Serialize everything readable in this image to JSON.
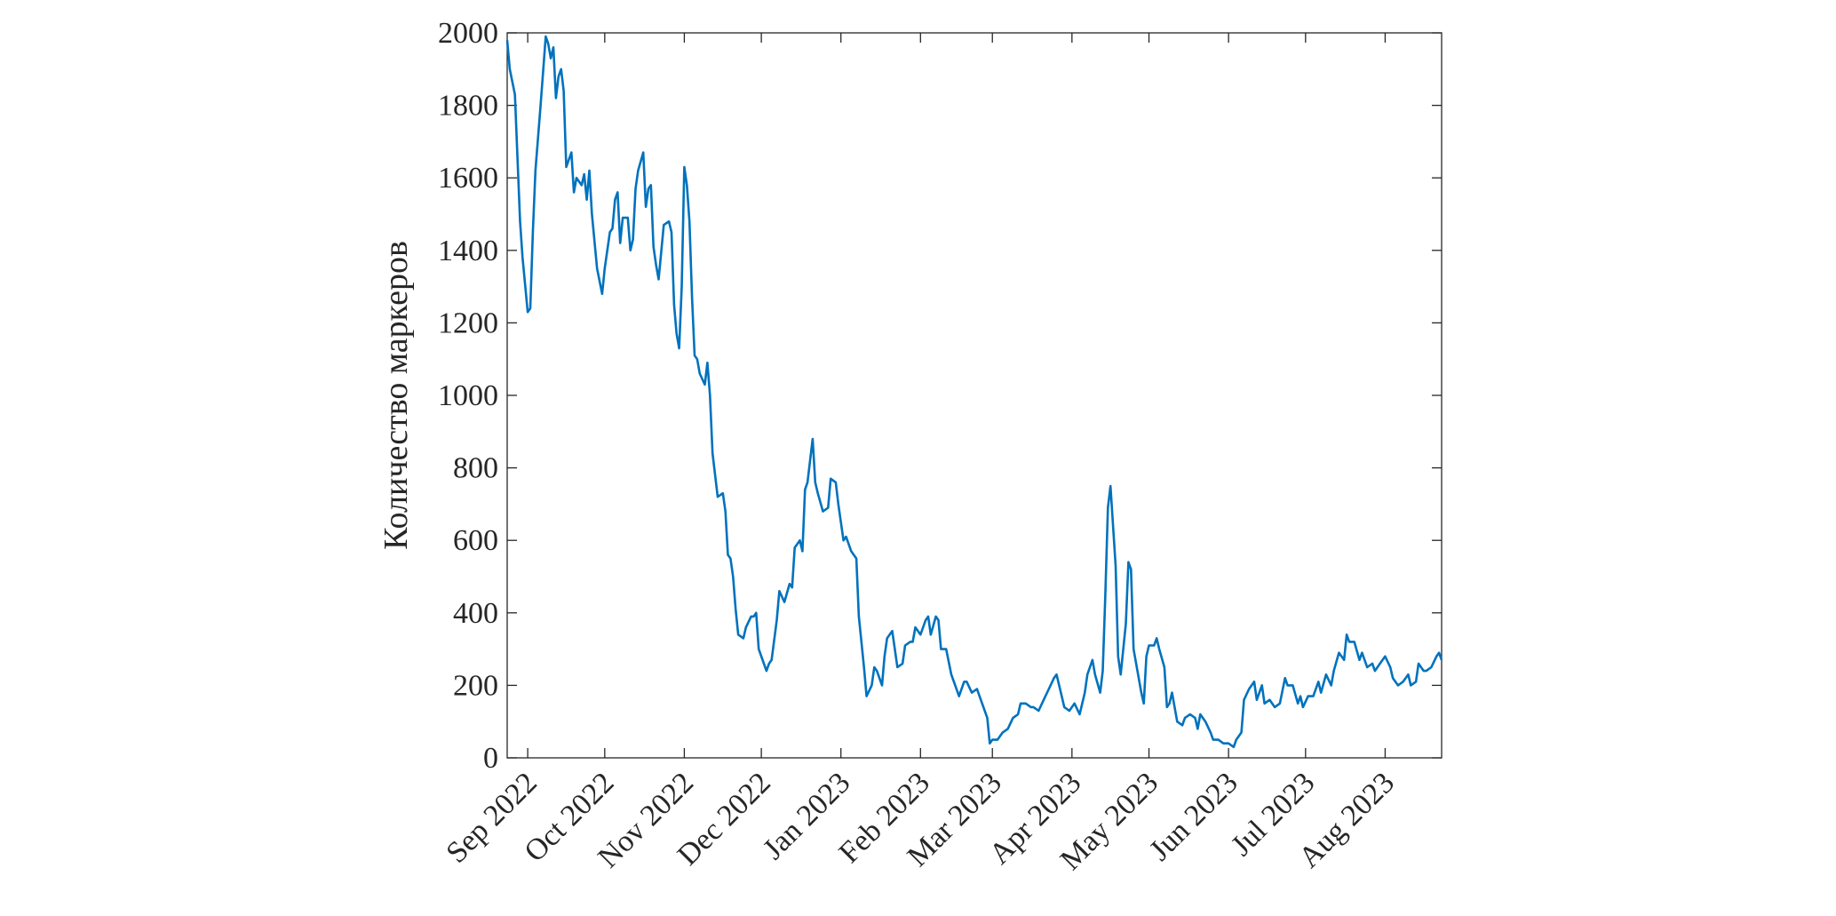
{
  "chart_data": {
    "type": "line",
    "y_label": "Количество маркеров",
    "color": "#0072bd",
    "xlim": [
      0,
      364
    ],
    "xticks": [
      {
        "value": 8,
        "label": "Sep 2022"
      },
      {
        "value": 38,
        "label": "Oct 2022"
      },
      {
        "value": 69,
        "label": "Nov 2022"
      },
      {
        "value": 99,
        "label": "Dec 2022"
      },
      {
        "value": 130,
        "label": "Jan 2023"
      },
      {
        "value": 161,
        "label": "Feb 2023"
      },
      {
        "value": 189,
        "label": "Mar 2023"
      },
      {
        "value": 220,
        "label": "Apr 2023"
      },
      {
        "value": 250,
        "label": "May 2023"
      },
      {
        "value": 281,
        "label": "Jun 2023"
      },
      {
        "value": 311,
        "label": "Jul 2023"
      },
      {
        "value": 342,
        "label": "Aug 2023"
      }
    ],
    "ylim": [
      0,
      2000
    ],
    "yticks": [
      0,
      200,
      400,
      600,
      800,
      1000,
      1200,
      1400,
      1600,
      1800,
      2000
    ],
    "x": [
      0,
      1,
      3,
      5,
      6,
      8,
      9,
      10,
      11,
      13,
      15,
      16,
      17,
      18,
      19,
      20,
      21,
      22,
      23,
      25,
      26,
      27,
      29,
      30,
      31,
      32,
      33,
      35,
      37,
      38,
      40,
      41,
      42,
      43,
      44,
      45,
      47,
      48,
      49,
      50,
      51,
      53,
      54,
      55,
      56,
      57,
      58,
      59,
      61,
      63,
      64,
      65,
      66,
      67,
      68,
      69,
      70,
      71,
      72,
      73,
      74,
      75,
      77,
      78,
      79,
      80,
      81,
      82,
      84,
      85,
      86,
      87,
      88,
      89,
      90,
      92,
      93,
      95,
      96,
      97,
      98,
      100,
      101,
      102,
      103,
      105,
      106,
      108,
      110,
      111,
      112,
      114,
      115,
      116,
      117,
      119,
      120,
      121,
      123,
      125,
      126,
      128,
      129,
      130,
      131,
      132,
      134,
      136,
      137,
      139,
      140,
      142,
      143,
      144,
      146,
      147,
      148,
      150,
      151,
      152,
      154,
      155,
      157,
      158,
      159,
      161,
      163,
      164,
      165,
      167,
      168,
      169,
      171,
      173,
      174,
      176,
      178,
      179,
      181,
      183,
      185,
      187,
      188,
      189,
      191,
      193,
      195,
      197,
      199,
      200,
      202,
      204,
      205,
      207,
      209,
      211,
      213,
      214,
      216,
      217,
      219,
      221,
      223,
      225,
      226,
      228,
      229,
      231,
      232,
      233,
      234,
      235,
      237,
      238,
      239,
      241,
      242,
      243,
      244,
      247,
      248,
      249,
      250,
      252,
      253,
      254,
      256,
      257,
      258,
      259,
      261,
      263,
      264,
      266,
      268,
      269,
      270,
      272,
      274,
      275,
      277,
      279,
      281,
      283,
      284,
      286,
      287,
      289,
      291,
      292,
      294,
      295,
      297,
      299,
      301,
      303,
      304,
      306,
      308,
      309,
      310,
      312,
      314,
      316,
      317,
      319,
      321,
      322,
      324,
      326,
      327,
      328,
      330,
      332,
      333,
      335,
      337,
      338,
      340,
      342,
      344,
      345,
      347,
      349,
      351,
      352,
      354,
      355,
      357,
      358,
      360,
      362,
      363,
      364
    ],
    "values": [
      1980,
      1900,
      1830,
      1480,
      1380,
      1230,
      1240,
      1450,
      1620,
      1800,
      1990,
      1970,
      1930,
      1960,
      1820,
      1880,
      1900,
      1840,
      1630,
      1670,
      1560,
      1600,
      1580,
      1610,
      1540,
      1620,
      1500,
      1350,
      1280,
      1350,
      1450,
      1460,
      1540,
      1560,
      1420,
      1490,
      1490,
      1400,
      1430,
      1570,
      1620,
      1670,
      1520,
      1570,
      1580,
      1410,
      1360,
      1320,
      1470,
      1480,
      1450,
      1250,
      1170,
      1130,
      1300,
      1630,
      1580,
      1480,
      1270,
      1110,
      1100,
      1060,
      1030,
      1090,
      1000,
      840,
      780,
      720,
      730,
      680,
      560,
      550,
      500,
      410,
      340,
      330,
      360,
      390,
      390,
      400,
      300,
      260,
      240,
      260,
      270,
      380,
      460,
      430,
      480,
      470,
      580,
      600,
      570,
      740,
      760,
      880,
      760,
      730,
      680,
      690,
      770,
      760,
      700,
      650,
      600,
      610,
      570,
      550,
      390,
      250,
      170,
      200,
      250,
      240,
      200,
      280,
      330,
      350,
      300,
      250,
      260,
      310,
      320,
      320,
      360,
      340,
      380,
      390,
      340,
      390,
      380,
      300,
      300,
      230,
      210,
      170,
      210,
      210,
      180,
      190,
      150,
      110,
      40,
      50,
      50,
      70,
      80,
      110,
      120,
      150,
      150,
      140,
      140,
      130,
      160,
      190,
      220,
      230,
      170,
      140,
      130,
      150,
      120,
      180,
      230,
      270,
      230,
      180,
      240,
      450,
      690,
      750,
      530,
      280,
      230,
      370,
      540,
      520,
      300,
      180,
      150,
      280,
      310,
      310,
      330,
      300,
      250,
      140,
      150,
      180,
      100,
      90,
      110,
      120,
      110,
      80,
      120,
      100,
      70,
      50,
      50,
      40,
      40,
      30,
      50,
      70,
      160,
      190,
      210,
      160,
      200,
      150,
      160,
      140,
      150,
      220,
      200,
      200,
      150,
      170,
      140,
      170,
      170,
      210,
      180,
      230,
      200,
      240,
      290,
      270,
      340,
      320,
      320,
      270,
      290,
      250,
      260,
      240,
      260,
      280,
      250,
      220,
      200,
      210,
      230,
      200,
      210,
      260,
      240,
      240,
      250,
      280,
      290,
      270
    ]
  }
}
